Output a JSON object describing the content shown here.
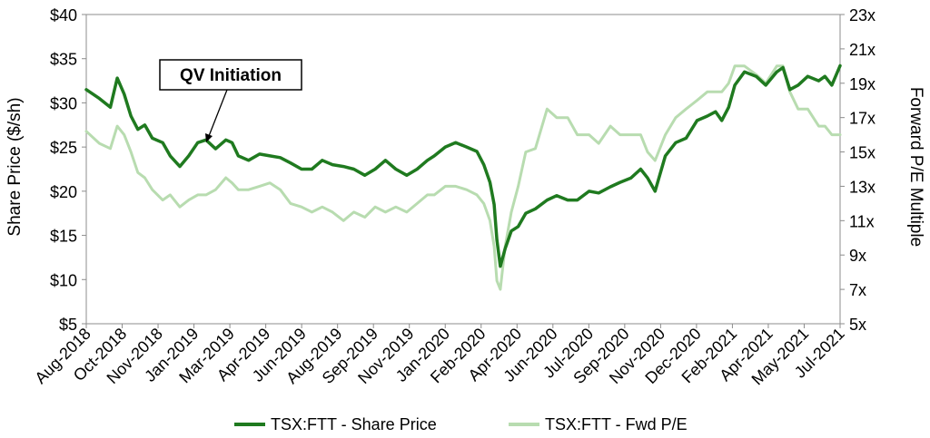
{
  "chart_data": {
    "type": "line",
    "title": "",
    "ylabel": "Share Price ($/sh)",
    "y2label": "Forward P/E Multiple",
    "ylim": [
      5,
      40
    ],
    "y2lim": [
      5,
      23
    ],
    "y_ticks": [
      "$5",
      "$10",
      "$15",
      "$20",
      "$25",
      "$30",
      "$35",
      "$40"
    ],
    "y2_ticks": [
      "5x",
      "7x",
      "9x",
      "11x",
      "13x",
      "15x",
      "17x",
      "19x",
      "21x",
      "23x"
    ],
    "x_ticks": [
      "Aug-2018",
      "Oct-2018",
      "Nov-2018",
      "Jan-2019",
      "Mar-2019",
      "Apr-2019",
      "Jun-2019",
      "Aug-2019",
      "Sep-2019",
      "Nov-2019",
      "Jan-2020",
      "Feb-2020",
      "Apr-2020",
      "Jun-2020",
      "Jul-2020",
      "Sep-2020",
      "Nov-2020",
      "Dec-2020",
      "Feb-2021",
      "Apr-2021",
      "May-2021",
      "Jul-2021"
    ],
    "grid": false,
    "legend_position": "bottom",
    "annotation": "QV Initiation",
    "series": [
      {
        "name": "TSX:FTT - Share Price",
        "axis": "left",
        "color": "#1f7a1f",
        "x": [
          "2018-08-01",
          "2018-08-20",
          "2018-09-05",
          "2018-09-15",
          "2018-09-25",
          "2018-10-05",
          "2018-10-15",
          "2018-10-25",
          "2018-11-05",
          "2018-11-20",
          "2018-12-01",
          "2018-12-15",
          "2018-12-28",
          "2019-01-10",
          "2019-01-22",
          "2019-02-05",
          "2019-02-20",
          "2019-03-01",
          "2019-03-10",
          "2019-03-25",
          "2019-04-10",
          "2019-04-25",
          "2019-05-10",
          "2019-05-25",
          "2019-06-10",
          "2019-06-25",
          "2019-07-10",
          "2019-07-25",
          "2019-08-10",
          "2019-08-25",
          "2019-09-10",
          "2019-09-25",
          "2019-10-10",
          "2019-10-25",
          "2019-11-10",
          "2019-11-25",
          "2019-12-10",
          "2019-12-20",
          "2020-01-05",
          "2020-01-20",
          "2020-02-05",
          "2020-02-20",
          "2020-03-01",
          "2020-03-10",
          "2020-03-16",
          "2020-03-20",
          "2020-03-25",
          "2020-04-01",
          "2020-04-10",
          "2020-04-20",
          "2020-05-01",
          "2020-05-15",
          "2020-06-01",
          "2020-06-15",
          "2020-07-01",
          "2020-07-15",
          "2020-08-01",
          "2020-08-15",
          "2020-09-01",
          "2020-09-15",
          "2020-10-01",
          "2020-10-15",
          "2020-10-25",
          "2020-11-05",
          "2020-11-20",
          "2020-12-05",
          "2020-12-20",
          "2021-01-05",
          "2021-01-20",
          "2021-02-01",
          "2021-02-10",
          "2021-02-20",
          "2021-03-01",
          "2021-03-15",
          "2021-04-01",
          "2021-04-15",
          "2021-05-01",
          "2021-05-10",
          "2021-05-20",
          "2021-06-01",
          "2021-06-15",
          "2021-07-01",
          "2021-07-10",
          "2021-07-20",
          "2021-08-01"
        ],
        "values": [
          31.5,
          30.5,
          29.5,
          32.8,
          31.0,
          28.5,
          27.0,
          27.5,
          26.0,
          25.5,
          24.0,
          22.8,
          24.0,
          25.5,
          25.8,
          24.8,
          25.8,
          25.5,
          24.0,
          23.5,
          24.2,
          24.0,
          23.8,
          23.2,
          22.5,
          22.5,
          23.5,
          23.0,
          22.8,
          22.5,
          21.8,
          22.5,
          23.5,
          22.5,
          21.8,
          22.5,
          23.5,
          24.0,
          25.0,
          25.5,
          25.0,
          24.5,
          23.0,
          21.0,
          18.5,
          14.5,
          11.5,
          13.5,
          15.5,
          16.0,
          17.5,
          18.0,
          19.0,
          19.5,
          19.0,
          19.0,
          20.0,
          19.8,
          20.5,
          21.0,
          21.5,
          22.5,
          21.5,
          20.0,
          24.0,
          25.5,
          26.0,
          28.0,
          28.5,
          29.0,
          28.0,
          29.5,
          32.0,
          33.5,
          33.0,
          32.0,
          33.5,
          34.0,
          31.5,
          32.0,
          33.0,
          32.5,
          33.0,
          32.0,
          34.2
        ]
      },
      {
        "name": "TSX:FTT - Fwd P/E",
        "axis": "right",
        "color": "#b8dcb0",
        "x": [
          "2018-08-01",
          "2018-08-20",
          "2018-09-05",
          "2018-09-15",
          "2018-09-25",
          "2018-10-05",
          "2018-10-15",
          "2018-10-25",
          "2018-11-05",
          "2018-11-20",
          "2018-12-01",
          "2018-12-15",
          "2018-12-28",
          "2019-01-10",
          "2019-01-22",
          "2019-02-05",
          "2019-02-20",
          "2019-03-01",
          "2019-03-10",
          "2019-03-25",
          "2019-04-10",
          "2019-04-25",
          "2019-05-10",
          "2019-05-25",
          "2019-06-10",
          "2019-06-25",
          "2019-07-10",
          "2019-07-25",
          "2019-08-10",
          "2019-08-25",
          "2019-09-10",
          "2019-09-25",
          "2019-10-10",
          "2019-10-25",
          "2019-11-10",
          "2019-11-25",
          "2019-12-10",
          "2019-12-20",
          "2020-01-05",
          "2020-01-20",
          "2020-02-05",
          "2020-02-20",
          "2020-03-01",
          "2020-03-10",
          "2020-03-16",
          "2020-03-20",
          "2020-03-25",
          "2020-04-01",
          "2020-04-10",
          "2020-04-20",
          "2020-05-01",
          "2020-05-15",
          "2020-06-01",
          "2020-06-15",
          "2020-07-01",
          "2020-07-15",
          "2020-08-01",
          "2020-08-15",
          "2020-09-01",
          "2020-09-15",
          "2020-10-01",
          "2020-10-15",
          "2020-10-25",
          "2020-11-05",
          "2020-11-20",
          "2020-12-05",
          "2020-12-20",
          "2021-01-05",
          "2021-01-20",
          "2021-02-01",
          "2021-02-10",
          "2021-02-20",
          "2021-03-01",
          "2021-03-15",
          "2021-04-01",
          "2021-04-15",
          "2021-05-01",
          "2021-05-10",
          "2021-05-20",
          "2021-06-01",
          "2021-06-15",
          "2021-07-01",
          "2021-07-10",
          "2021-07-20",
          "2021-08-01"
        ],
        "values": [
          16.2,
          15.5,
          15.2,
          16.5,
          16.0,
          15.0,
          13.8,
          13.5,
          12.8,
          12.2,
          12.5,
          11.8,
          12.2,
          12.5,
          12.5,
          12.8,
          13.5,
          13.2,
          12.8,
          12.8,
          13.0,
          13.2,
          12.8,
          12.0,
          11.8,
          11.5,
          11.8,
          11.5,
          11.0,
          11.5,
          11.2,
          11.8,
          11.5,
          11.8,
          11.5,
          12.0,
          12.5,
          12.5,
          13.0,
          13.0,
          12.8,
          12.5,
          12.0,
          11.0,
          9.5,
          7.5,
          7.0,
          9.5,
          11.5,
          13.0,
          15.0,
          15.2,
          17.5,
          17.0,
          17.0,
          16.0,
          16.0,
          15.5,
          16.5,
          16.0,
          16.0,
          16.0,
          15.0,
          14.5,
          16.0,
          17.0,
          17.5,
          18.0,
          18.5,
          18.5,
          18.5,
          19.0,
          20.0,
          20.0,
          19.5,
          19.0,
          20.0,
          20.0,
          18.5,
          17.5,
          17.5,
          16.5,
          16.5,
          16.0,
          16.0
        ]
      }
    ]
  }
}
